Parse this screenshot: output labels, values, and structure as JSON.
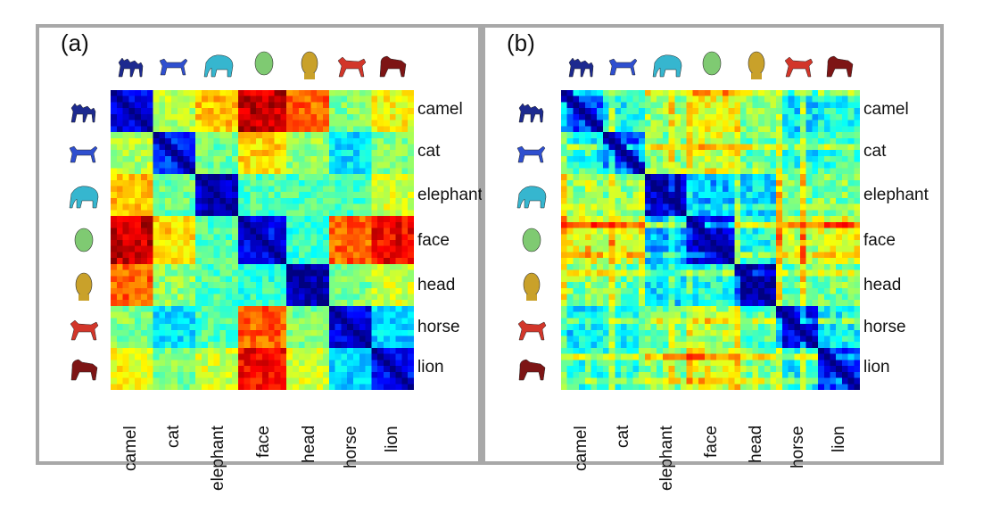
{
  "colors": {
    "frame": "#a8a8a8",
    "colormap": "jet",
    "shapes": {
      "camel": "#1d2a8f",
      "cat": "#2f4fcf",
      "elephant": "#36b6cf",
      "face": "#7fca72",
      "head": "#c9a12a",
      "horse": "#d2362a",
      "lion": "#7d1515"
    }
  },
  "chart_data": [
    {
      "type": "heatmap",
      "panel_label": "(a)",
      "colormap": "jet",
      "rows": [
        "camel",
        "cat",
        "elephant",
        "face",
        "head",
        "horse",
        "lion"
      ],
      "columns": [
        "camel",
        "cat",
        "elephant",
        "face",
        "head",
        "horse",
        "lion"
      ],
      "values": [
        [
          0.1,
          0.55,
          0.68,
          0.93,
          0.78,
          0.5,
          0.62
        ],
        [
          0.55,
          0.18,
          0.48,
          0.66,
          0.52,
          0.35,
          0.5
        ],
        [
          0.68,
          0.48,
          0.06,
          0.45,
          0.45,
          0.45,
          0.58
        ],
        [
          0.93,
          0.66,
          0.45,
          0.12,
          0.42,
          0.78,
          0.88
        ],
        [
          0.78,
          0.52,
          0.45,
          0.42,
          0.05,
          0.5,
          0.58
        ],
        [
          0.5,
          0.35,
          0.45,
          0.78,
          0.5,
          0.1,
          0.33
        ],
        [
          0.62,
          0.5,
          0.58,
          0.88,
          0.58,
          0.33,
          0.14
        ]
      ]
    },
    {
      "type": "heatmap",
      "panel_label": "(b)",
      "colormap": "jet",
      "rows": [
        "camel",
        "cat",
        "elephant",
        "face",
        "head",
        "horse",
        "lion"
      ],
      "columns": [
        "camel",
        "cat",
        "elephant",
        "face",
        "head",
        "horse",
        "lion"
      ],
      "values": [
        [
          0.2,
          0.38,
          0.52,
          0.6,
          0.5,
          0.35,
          0.4
        ],
        [
          0.38,
          0.22,
          0.5,
          0.58,
          0.48,
          0.38,
          0.42
        ],
        [
          0.52,
          0.5,
          0.06,
          0.3,
          0.35,
          0.48,
          0.5
        ],
        [
          0.6,
          0.58,
          0.3,
          0.1,
          0.4,
          0.55,
          0.6
        ],
        [
          0.5,
          0.48,
          0.35,
          0.4,
          0.05,
          0.45,
          0.5
        ],
        [
          0.35,
          0.38,
          0.48,
          0.55,
          0.45,
          0.12,
          0.38
        ],
        [
          0.4,
          0.42,
          0.5,
          0.6,
          0.5,
          0.38,
          0.15
        ]
      ]
    }
  ]
}
